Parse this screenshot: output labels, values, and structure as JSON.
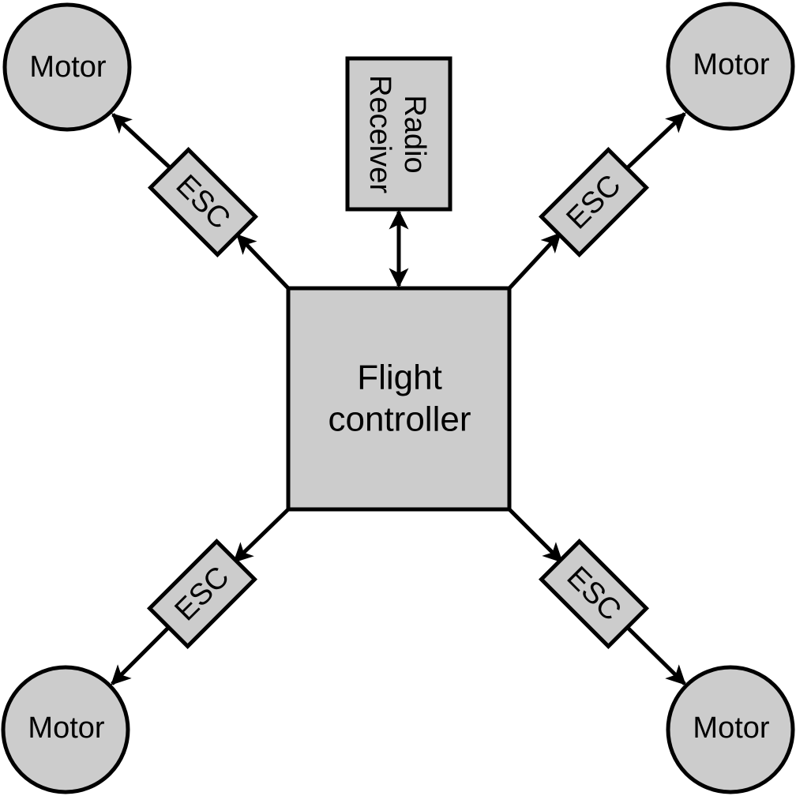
{
  "colors": {
    "fill": "#cccccc",
    "stroke": "#000000",
    "background": "#ffffff"
  },
  "flight_controller": {
    "line1": "Flight",
    "line2": "controller"
  },
  "radio_receiver": {
    "line1": "Radio",
    "line2": "Receiver"
  },
  "motors": [
    {
      "label": "Motor"
    },
    {
      "label": "Motor"
    },
    {
      "label": "Motor"
    },
    {
      "label": "Motor"
    }
  ],
  "escs": [
    {
      "label": "ESC"
    },
    {
      "label": "ESC"
    },
    {
      "label": "ESC"
    },
    {
      "label": "ESC"
    }
  ]
}
